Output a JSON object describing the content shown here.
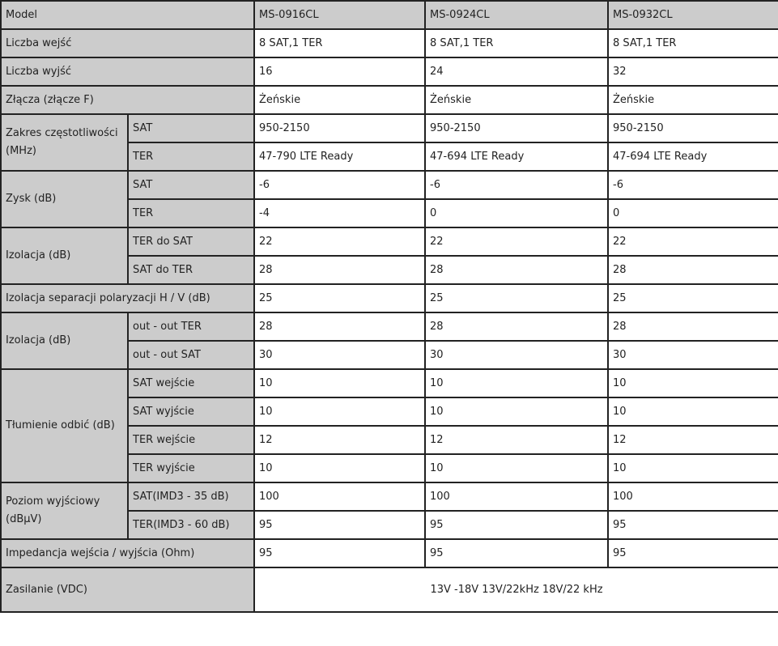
{
  "header": {
    "label": "Model",
    "models": [
      "MS-0916CL",
      "MS-0924CL",
      "MS-0932CL"
    ]
  },
  "groups": [
    {
      "label": "Liczba wejść",
      "rows": [
        {
          "values": [
            "8 SAT,1 TER",
            "8 SAT,1 TER",
            "8 SAT,1 TER"
          ]
        }
      ]
    },
    {
      "label": "Liczba wyjść",
      "rows": [
        {
          "values": [
            "16",
            "24",
            "32"
          ]
        }
      ]
    },
    {
      "label": "Złącza (złącze F)",
      "rows": [
        {
          "values": [
            "Żeńskie",
            "Żeńskie",
            "Żeńskie"
          ]
        }
      ]
    },
    {
      "label": "Zakres częstotliwości (MHz)",
      "rows": [
        {
          "sub": "SAT",
          "values": [
            "950-2150",
            "950-2150",
            "950-2150"
          ]
        },
        {
          "sub": "TER",
          "values": [
            "47-790 LTE Ready",
            "47-694 LTE Ready",
            "47-694 LTE Ready"
          ]
        }
      ]
    },
    {
      "label": "Zysk (dB)",
      "rows": [
        {
          "sub": "SAT",
          "values": [
            "-6",
            "-6",
            "-6"
          ]
        },
        {
          "sub": "TER",
          "values": [
            "-4",
            "0",
            "0"
          ]
        }
      ]
    },
    {
      "label": "Izolacja (dB)",
      "rows": [
        {
          "sub": "TER do SAT",
          "values": [
            "22",
            "22",
            "22"
          ]
        },
        {
          "sub": "SAT do TER",
          "values": [
            "28",
            "28",
            "28"
          ]
        }
      ]
    },
    {
      "label": "Izolacja separacji polaryzacji H / V (dB)",
      "rows": [
        {
          "values": [
            "25",
            "25",
            "25"
          ]
        }
      ]
    },
    {
      "label": "Izolacja (dB)",
      "rows": [
        {
          "sub": "out - out TER",
          "values": [
            "28",
            "28",
            "28"
          ]
        },
        {
          "sub": "out - out SAT",
          "values": [
            "30",
            "30",
            "30"
          ]
        }
      ]
    },
    {
      "label": "Tłumienie odbić (dB)",
      "rows": [
        {
          "sub": "SAT wejście",
          "values": [
            "10",
            "10",
            "10"
          ]
        },
        {
          "sub": "SAT wyjście",
          "values": [
            "10",
            "10",
            "10"
          ]
        },
        {
          "sub": "TER wejście",
          "values": [
            "12",
            "12",
            "12"
          ]
        },
        {
          "sub": "TER wyjście",
          "values": [
            "10",
            "10",
            "10"
          ]
        }
      ]
    },
    {
      "label": "Poziom wyjściowy (dBµV)",
      "rows": [
        {
          "sub": "SAT(IMD3 - 35 dB)",
          "values": [
            "100",
            "100",
            "100"
          ]
        },
        {
          "sub": "TER(IMD3 - 60 dB)",
          "values": [
            "95",
            "95",
            "95"
          ]
        }
      ]
    },
    {
      "label": "Impedancja wejścia / wyjścia (Ohm)",
      "rows": [
        {
          "values": [
            "95",
            "95",
            "95"
          ]
        }
      ]
    },
    {
      "label": "Zasilanie (VDC)",
      "tall": true,
      "rows": [
        {
          "merged": "13V -18V 13V/22kHz 18V/22 kHz"
        }
      ]
    }
  ]
}
